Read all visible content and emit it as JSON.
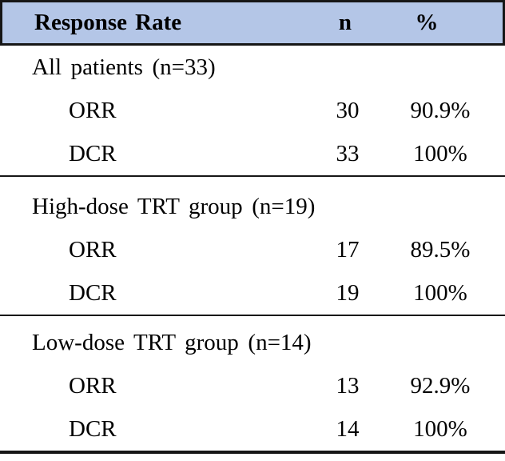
{
  "figure": {
    "type": "table",
    "header": {
      "response_rate": "Response Rate",
      "n": "n",
      "percent": "%"
    },
    "sections": [
      {
        "label": "All patients (n=33)",
        "rows": [
          {
            "name": "ORR",
            "n": "30",
            "pct": "90.9%"
          },
          {
            "name": "DCR",
            "n": "33",
            "pct": "100%"
          }
        ]
      },
      {
        "label": "High-dose TRT group (n=19)",
        "rows": [
          {
            "name": "ORR",
            "n": "17",
            "pct": "89.5%"
          },
          {
            "name": "DCR",
            "n": "19",
            "pct": "100%"
          }
        ]
      },
      {
        "label": "Low-dose TRT group (n=14)",
        "rows": [
          {
            "name": "ORR",
            "n": "13",
            "pct": "92.9%"
          },
          {
            "name": "DCR",
            "n": "14",
            "pct": "100%"
          }
        ]
      }
    ],
    "colors": {
      "header_bg": "#B4C6E7",
      "rule": "#161616",
      "text": "#000000",
      "background": "#FFFFFF"
    }
  }
}
